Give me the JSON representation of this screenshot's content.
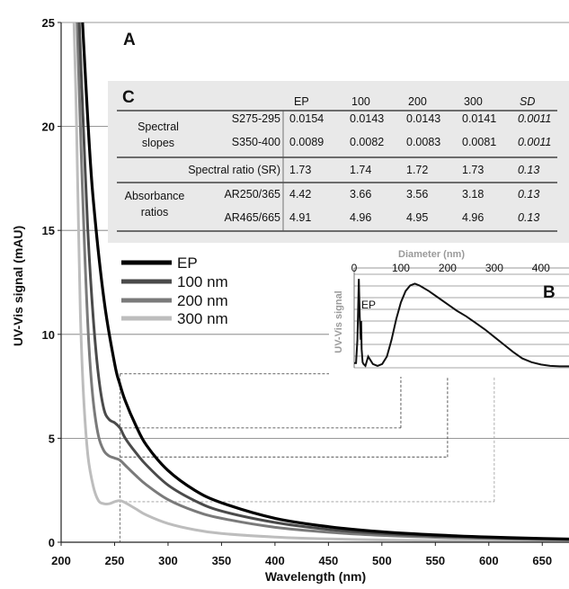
{
  "chart_data": [
    {
      "panel": "A",
      "type": "line",
      "xlabel": "Wavelength (nm)",
      "ylabel": "UV-Vis signal (mAU)",
      "xlim": [
        200,
        675
      ],
      "ylim": [
        0,
        25
      ],
      "xticks": [
        200,
        250,
        300,
        350,
        400,
        450,
        500,
        550,
        600,
        650
      ],
      "yticks": [
        0,
        5,
        10,
        15,
        20,
        25
      ],
      "grid": "horizontal",
      "legend_position": "left-middle",
      "series": [
        {
          "name": "EP",
          "color": "#000000",
          "stroke": 3.2,
          "x": [
            220,
            225,
            230,
            240,
            250,
            255,
            260,
            270,
            280,
            300,
            325,
            350,
            400,
            450,
            500,
            550,
            600,
            650,
            675
          ],
          "y": [
            25,
            20.3,
            16.5,
            11.7,
            8.6,
            7.6,
            6.8,
            5.6,
            4.65,
            3.45,
            2.5,
            1.9,
            1.15,
            0.75,
            0.5,
            0.35,
            0.25,
            0.18,
            0.15
          ]
        },
        {
          "name": "100 nm",
          "color": "#4a4a4a",
          "stroke": 3.0,
          "x": [
            217,
            220,
            225,
            230,
            235,
            240,
            245,
            250,
            255,
            260,
            270,
            280,
            300,
            325,
            350,
            400,
            450,
            500,
            550,
            600,
            650,
            675
          ],
          "y": [
            25,
            21,
            15,
            10.8,
            8.0,
            6.4,
            5.9,
            5.75,
            5.5,
            5.0,
            4.3,
            3.7,
            2.75,
            2.0,
            1.5,
            0.95,
            0.62,
            0.42,
            0.3,
            0.22,
            0.16,
            0.14
          ]
        },
        {
          "name": "200 nm",
          "color": "#7a7a7a",
          "stroke": 3.0,
          "x": [
            215,
            218,
            222,
            226,
            230,
            235,
            240,
            245,
            250,
            255,
            260,
            270,
            280,
            300,
            325,
            350,
            400,
            450,
            500,
            550,
            600,
            650,
            675
          ],
          "y": [
            25,
            20,
            14,
            9.5,
            6.8,
            5.1,
            4.4,
            4.15,
            4.05,
            3.95,
            3.7,
            3.2,
            2.75,
            2.05,
            1.5,
            1.15,
            0.72,
            0.48,
            0.33,
            0.24,
            0.18,
            0.13,
            0.12
          ]
        },
        {
          "name": "300 nm",
          "color": "#bdbdbd",
          "stroke": 3.0,
          "x": [
            212,
            214,
            216,
            218,
            221,
            225,
            230,
            235,
            240,
            245,
            250,
            255,
            260,
            270,
            280,
            300,
            325,
            350,
            400,
            450,
            500,
            550,
            600,
            650,
            675
          ],
          "y": [
            25,
            21,
            16,
            11,
            7,
            4.2,
            2.7,
            2.0,
            1.85,
            1.85,
            1.95,
            2.0,
            1.9,
            1.6,
            1.3,
            0.9,
            0.6,
            0.42,
            0.25,
            0.16,
            0.11,
            0.08,
            0.06,
            0.05,
            0.04
          ]
        }
      ]
    },
    {
      "panel": "B",
      "type": "line",
      "title": "Diameter (nm)",
      "ylabel": "UV-Vis signal",
      "xlim": [
        0,
        460
      ],
      "xticks": [
        0,
        100,
        200,
        300,
        400
      ],
      "annotations": [
        "EP"
      ],
      "series": [
        {
          "name": "EP",
          "x": [
            0,
            4,
            7,
            10,
            12,
            14,
            15,
            16,
            18,
            20,
            24,
            30,
            40,
            50,
            60,
            70,
            80,
            90,
            100,
            110,
            120,
            130,
            140,
            160,
            180,
            200,
            220,
            240,
            260,
            280,
            300,
            320,
            340,
            360,
            380,
            400,
            420,
            440,
            460
          ],
          "y": [
            0.05,
            0.05,
            0.3,
            0.95,
            0.55,
            0.3,
            0.5,
            0.2,
            0.06,
            0.04,
            0.02,
            0.12,
            0.04,
            0.02,
            0.04,
            0.12,
            0.3,
            0.52,
            0.7,
            0.82,
            0.88,
            0.9,
            0.88,
            0.82,
            0.75,
            0.68,
            0.61,
            0.55,
            0.48,
            0.41,
            0.33,
            0.25,
            0.17,
            0.1,
            0.06,
            0.035,
            0.02,
            0.015,
            0.015
          ]
        }
      ]
    },
    {
      "panel": "C",
      "type": "table",
      "columns": [
        "",
        "",
        "EP",
        "100",
        "200",
        "300",
        "SD"
      ],
      "rows": [
        {
          "group": "Spectral slopes",
          "label": "S275-295",
          "values": [
            "0.0154",
            "0.0143",
            "0.0143",
            "0.0141",
            "0.0011"
          ]
        },
        {
          "group": "",
          "label": "S350-400",
          "values": [
            "0.0089",
            "0.0082",
            "0.0083",
            "0.0081",
            "0.0011"
          ]
        },
        {
          "group": "",
          "label": "Spectral ratio (SR)",
          "values": [
            "1.73",
            "1.74",
            "1.72",
            "1.73",
            "0.13"
          ]
        },
        {
          "group": "Absorbance ratios",
          "label": "AR250/365",
          "values": [
            "4.42",
            "3.66",
            "3.56",
            "3.18",
            "0.13"
          ]
        },
        {
          "group": "",
          "label": "AR465/665",
          "values": [
            "4.91",
            "4.96",
            "4.95",
            "4.96",
            "0.13"
          ]
        }
      ]
    }
  ],
  "panels": {
    "a": "A",
    "b": "B",
    "c": "C"
  },
  "table": {
    "group_spectral_1": "Spectral",
    "group_spectral_2": "slopes",
    "group_absorb_1": "Absorbance",
    "group_absorb_2": "ratios"
  },
  "inset": {
    "ep_label": "EP"
  }
}
